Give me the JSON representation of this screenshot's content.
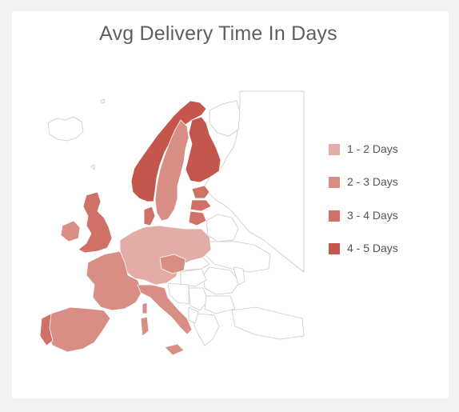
{
  "title": "Avg Delivery Time In Days",
  "legend": [
    {
      "label": "1 - 2 Days",
      "color": "#e3aca6"
    },
    {
      "label": "2 - 3 Days",
      "color": "#d98e85"
    },
    {
      "label": "3 - 4 Days",
      "color": "#cf7167"
    },
    {
      "label": "4 - 5 Days",
      "color": "#c4564b"
    }
  ],
  "regions": {
    "1-2 days": [
      "Germany",
      "Poland",
      "Czech Republic",
      "Netherlands",
      "Belgium",
      "Switzerland",
      "Austria"
    ],
    "2-3 days": [
      "France",
      "Spain",
      "Italy",
      "Sweden",
      "Ireland",
      "Luxembourg"
    ],
    "3-4 days": [
      "United Kingdom",
      "Portugal",
      "Denmark",
      "Estonia",
      "Latvia",
      "Lithuania"
    ],
    "4-5 days": [
      "Norway",
      "Finland"
    ]
  }
}
